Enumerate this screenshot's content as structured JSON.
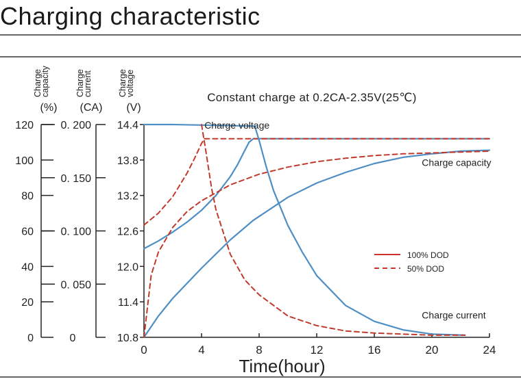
{
  "page": {
    "title": "Charging characteristic"
  },
  "chart_data": {
    "type": "line",
    "title": "Constant charge at 0.2CA-2.35V(25℃)",
    "xlabel": "Time(hour)",
    "xlim": [
      0,
      24
    ],
    "x_ticks": [
      0,
      4,
      8,
      12,
      16,
      20,
      24
    ],
    "axes": [
      {
        "id": "capacity",
        "label_lines": [
          "Charge",
          "capacity"
        ],
        "unit": "(%)",
        "range": [
          0,
          120
        ],
        "ticks": [
          0,
          20,
          40,
          60,
          80,
          100,
          120
        ],
        "tick_labels": [
          "0",
          "20",
          "40",
          "60",
          "80",
          "100",
          "120"
        ]
      },
      {
        "id": "current",
        "label_lines": [
          "Charge",
          "current"
        ],
        "unit": "(CA)",
        "range": [
          0,
          0.2
        ],
        "ticks": [
          0,
          0.05,
          0.1,
          0.15,
          0.2
        ],
        "tick_labels": [
          "0",
          "0. 050",
          "0. 100",
          "0. 150",
          "0. 200"
        ]
      },
      {
        "id": "voltage",
        "label_lines": [
          "Charge",
          "voltage"
        ],
        "unit": "(V)",
        "range": [
          10.8,
          14.4
        ],
        "ticks": [
          10.8,
          11.4,
          12.0,
          12.6,
          13.2,
          13.8,
          14.4
        ],
        "tick_labels": [
          "10.8",
          "11.4",
          "12.0",
          "12.6",
          "13.2",
          "13.8",
          "14.4"
        ]
      }
    ],
    "legend": {
      "position": "right-middle",
      "items": [
        {
          "label": "100% DOD",
          "color": "#d0312d",
          "style": "solid"
        },
        {
          "label": "50% DOD",
          "color": "#d0312d",
          "style": "dashed"
        }
      ]
    },
    "curve_annotations": [
      {
        "text": "Charge voltage",
        "x": 4.2,
        "y_voltage": 14.33
      },
      {
        "text": "Charge capacity",
        "x": 19.3,
        "y_voltage": 13.7
      },
      {
        "text": "Charge current",
        "x": 19.3,
        "y_voltage": 11.12
      }
    ],
    "series": [
      {
        "quantity": "voltage",
        "dod": "100%",
        "color": "#4d8ec4",
        "style": "solid",
        "x": [
          0,
          1,
          2,
          3,
          4,
          5,
          6,
          6.5,
          7,
          7.3,
          7.6,
          8,
          12,
          16,
          20,
          24
        ],
        "y": [
          12.3,
          12.43,
          12.58,
          12.75,
          12.95,
          13.2,
          13.52,
          13.72,
          13.96,
          14.1,
          14.16,
          14.16,
          14.16,
          14.16,
          14.16,
          14.16
        ]
      },
      {
        "quantity": "voltage",
        "dod": "50%",
        "color": "#c0392b",
        "style": "dashed",
        "x": [
          0,
          1,
          2,
          3,
          3.5,
          4,
          4.2,
          8,
          12,
          16,
          20,
          24
        ],
        "y": [
          12.7,
          12.9,
          13.18,
          13.58,
          13.82,
          14.08,
          14.16,
          14.16,
          14.16,
          14.16,
          14.16,
          14.16
        ]
      },
      {
        "quantity": "capacity",
        "dod": "100%",
        "color": "#4d8ec4",
        "style": "solid",
        "x": [
          0,
          1,
          2,
          4,
          6,
          7.6,
          10,
          12,
          14,
          16,
          18,
          20,
          22,
          24
        ],
        "y": [
          0,
          12,
          22,
          39,
          55,
          66,
          79,
          87,
          93,
          98,
          101.5,
          103.5,
          105,
          105.5
        ]
      },
      {
        "quantity": "capacity",
        "dod": "50%",
        "color": "#c0392b",
        "style": "dashed",
        "x": [
          0,
          0.5,
          1,
          2,
          3,
          4,
          6,
          8,
          10,
          12,
          14,
          16,
          18,
          20,
          22,
          24
        ],
        "y": [
          0,
          35,
          48,
          62,
          71,
          77,
          86,
          92,
          96,
          99,
          101,
          102.5,
          103.5,
          104,
          104.5,
          105
        ]
      },
      {
        "quantity": "current",
        "dod": "100%",
        "color": "#4d8ec4",
        "style": "solid",
        "x": [
          0,
          2,
          4,
          6,
          7.7,
          8,
          8.5,
          9,
          10,
          11,
          12,
          14,
          16,
          18,
          20,
          22.3
        ],
        "y": [
          0.2,
          0.2,
          0.1995,
          0.199,
          0.1985,
          0.185,
          0.16,
          0.138,
          0.105,
          0.08,
          0.058,
          0.03,
          0.015,
          0.007,
          0.003,
          0.002
        ]
      },
      {
        "quantity": "current",
        "dod": "50%",
        "color": "#c0392b",
        "style": "dashed",
        "x": [
          4.0,
          4.3,
          4.7,
          5,
          6,
          7,
          8,
          10,
          12,
          14,
          16,
          18,
          20,
          22.3
        ],
        "y": [
          0.2,
          0.175,
          0.14,
          0.12,
          0.078,
          0.054,
          0.04,
          0.02,
          0.011,
          0.006,
          0.004,
          0.003,
          0.002,
          0.002
        ]
      }
    ]
  }
}
